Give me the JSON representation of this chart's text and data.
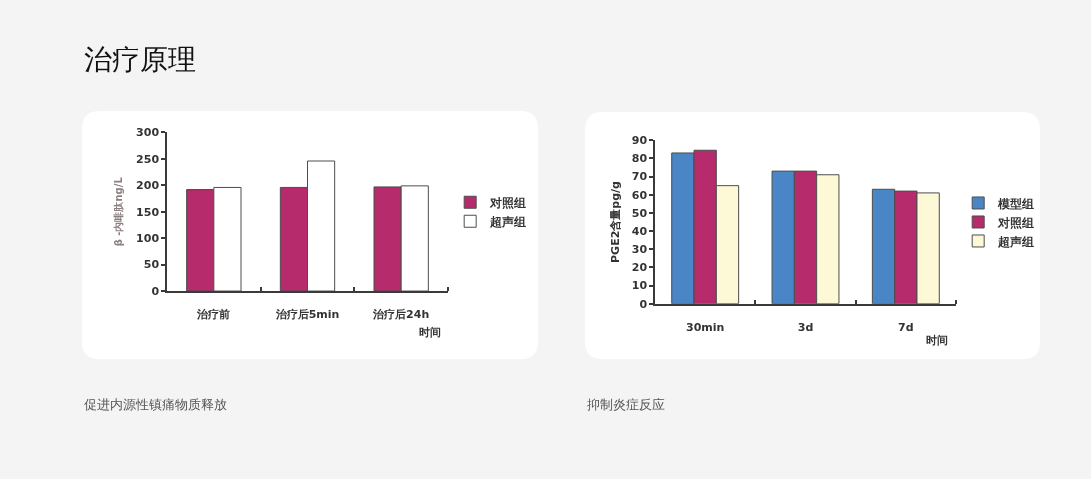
{
  "chart_data": [
    {
      "type": "bar",
      "title": "治疗原理",
      "categories": [
        "治疗前",
        "治疗后5min",
        "治疗后24h"
      ],
      "series": [
        {
          "name": "对照组",
          "color": "#b52b6b",
          "values": [
            192,
            196,
            197
          ]
        },
        {
          "name": "超声组",
          "color": "#ffffff",
          "values": [
            196,
            246,
            199
          ]
        }
      ],
      "ylabel": "β -内啡肽ng/L",
      "xlabel": "时间",
      "ylim": [
        0,
        300
      ],
      "yticks": [
        0,
        50,
        100,
        150,
        200,
        250,
        300
      ],
      "legend": "right",
      "grid": false,
      "annotations": [
        "促进内源性镇痛物质释放"
      ]
    },
    {
      "type": "bar",
      "categories": [
        "30min",
        "3d",
        "7d"
      ],
      "series": [
        {
          "name": "模型组",
          "color": "#4a86c6",
          "values": [
            83,
            73,
            63
          ]
        },
        {
          "name": "对照组",
          "color": "#b52b6b",
          "values": [
            84.5,
            73,
            62
          ]
        },
        {
          "name": "超声组",
          "color": "#fdf8d6",
          "values": [
            65,
            71,
            61
          ]
        }
      ],
      "ylabel": "PGE2含量pg/g",
      "xlabel": "时间",
      "ylim": [
        0,
        90
      ],
      "yticks": [
        0,
        10,
        20,
        30,
        40,
        50,
        60,
        70,
        80,
        90
      ],
      "legend": "right",
      "grid": false,
      "annotations": [
        "抑制炎症反应"
      ]
    }
  ]
}
